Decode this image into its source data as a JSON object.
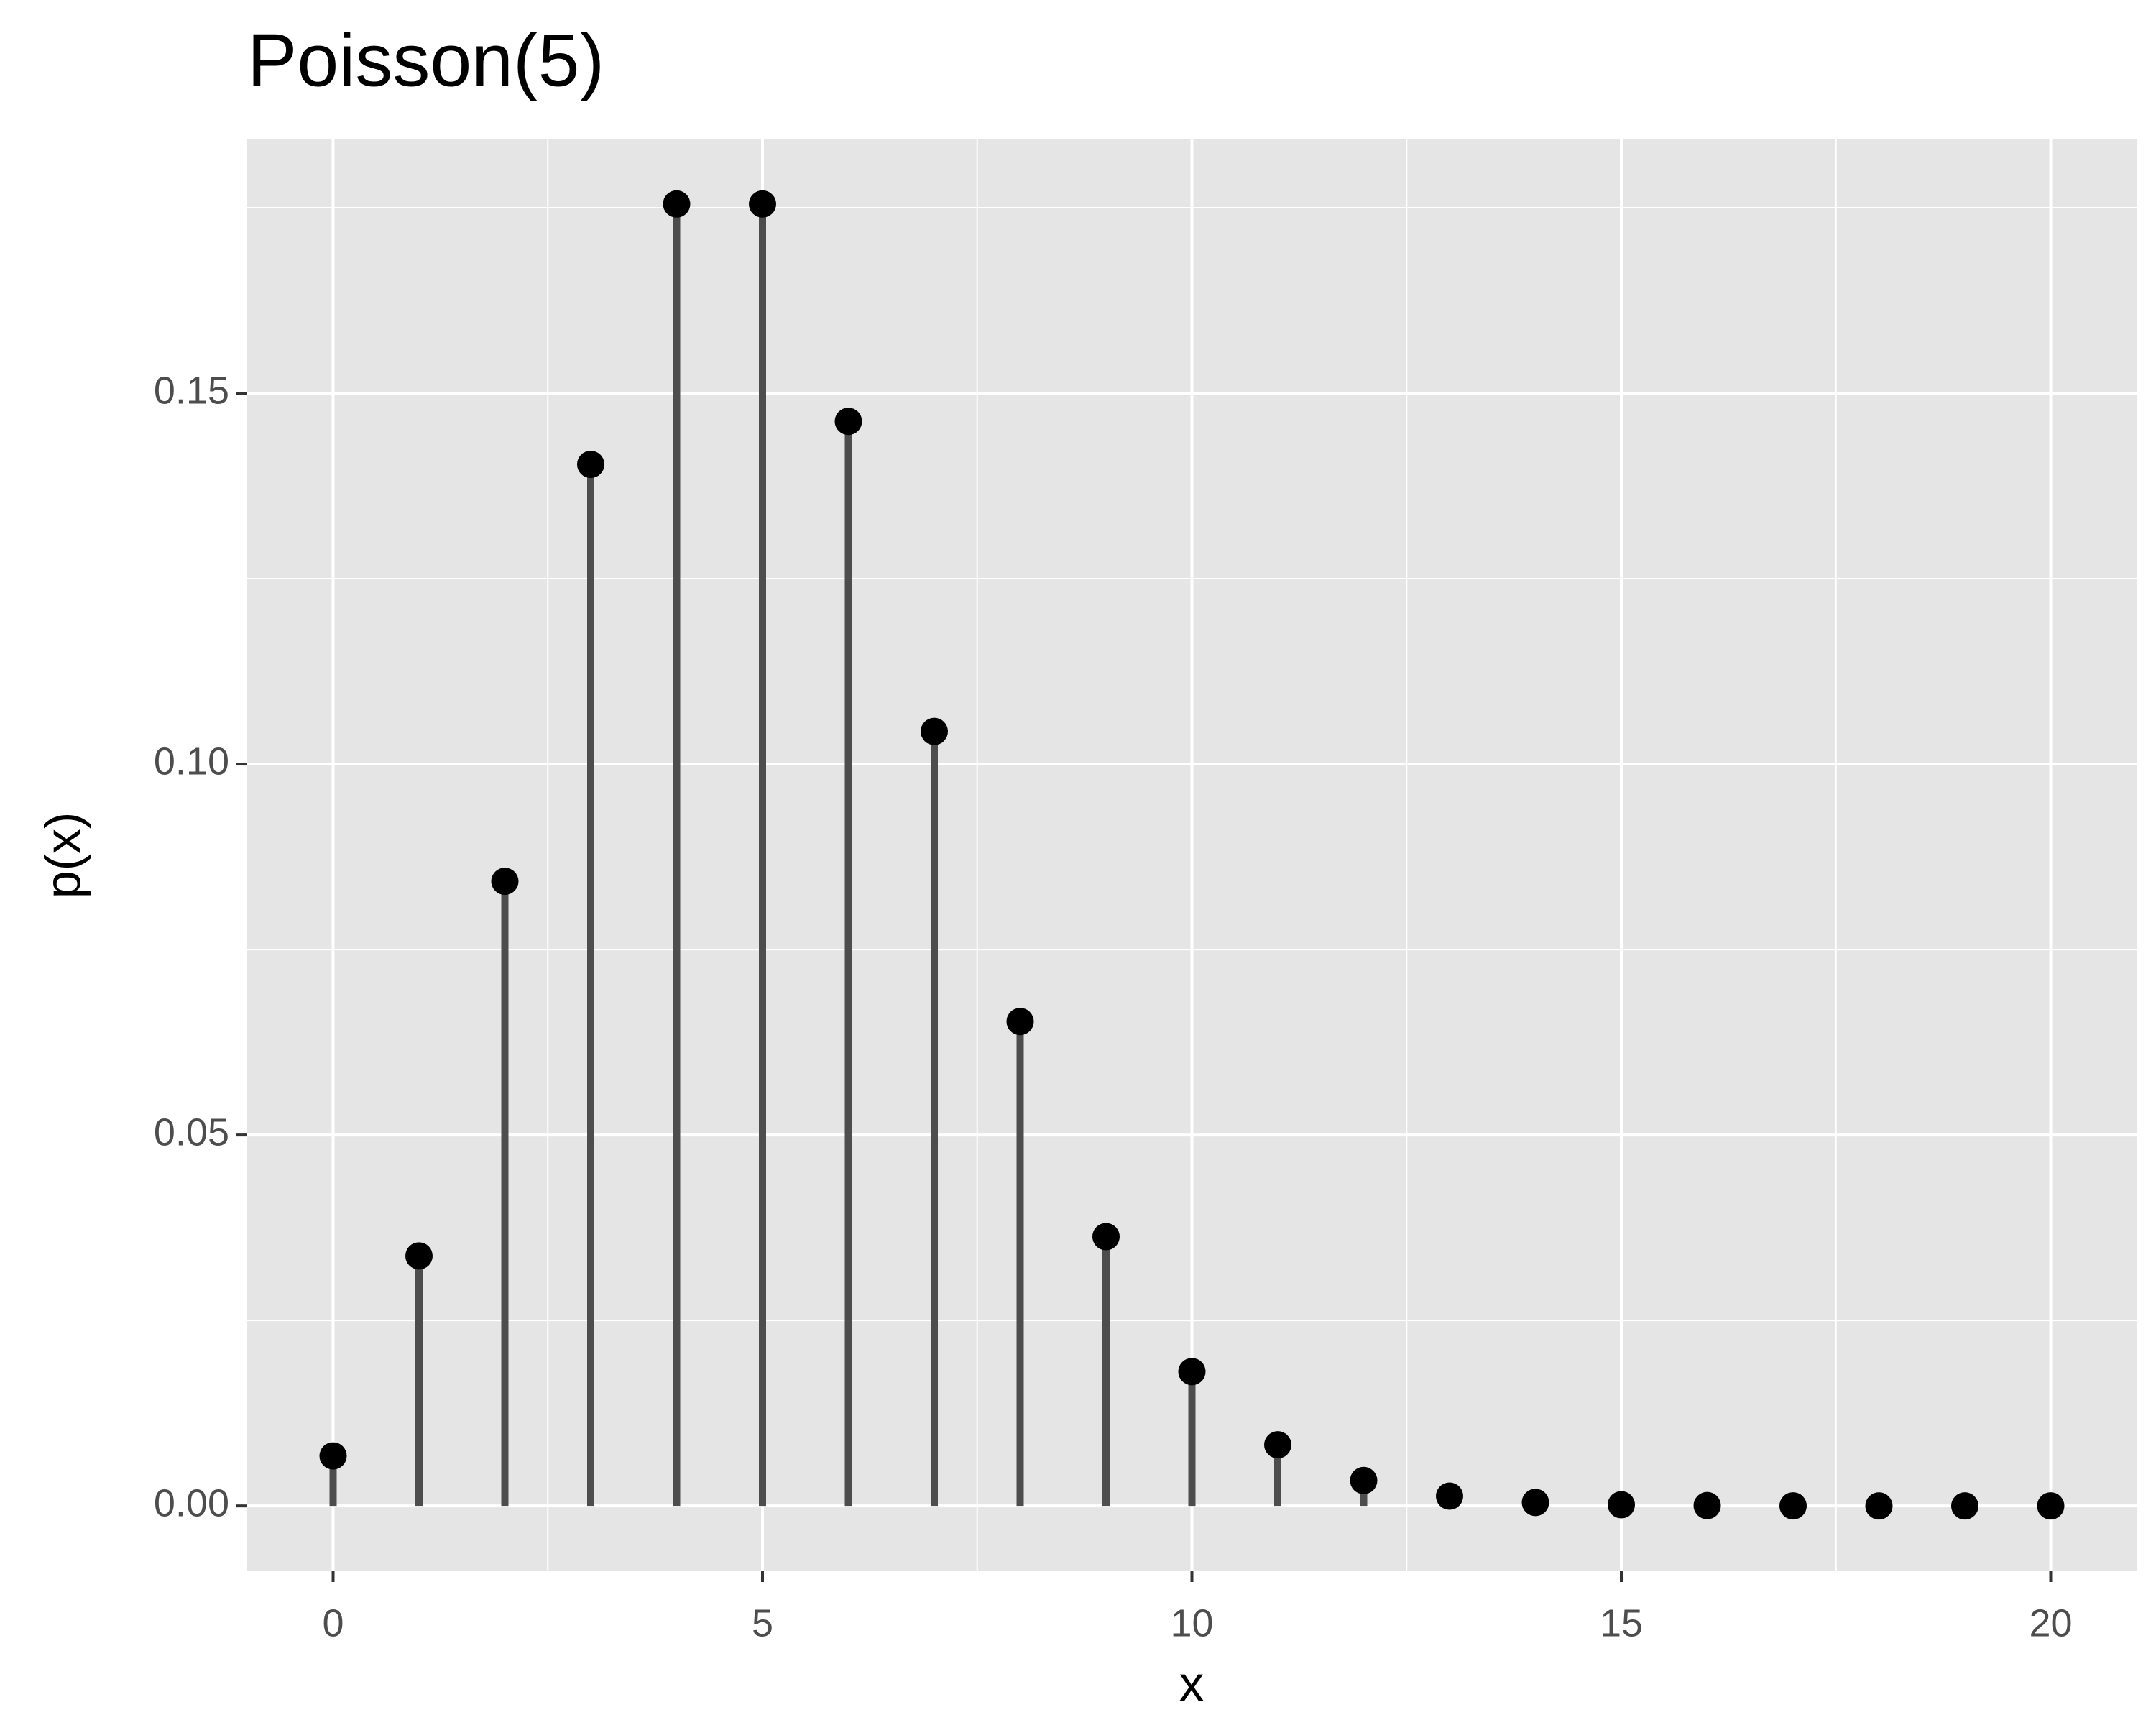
{
  "chart_data": {
    "type": "lollipop",
    "title": "Poisson(5)",
    "x_label": "x",
    "y_label": "p(x)",
    "x": [
      0,
      1,
      2,
      3,
      4,
      5,
      6,
      7,
      8,
      9,
      10,
      11,
      12,
      13,
      14,
      15,
      16,
      17,
      18,
      19,
      20
    ],
    "values": [
      0.00674,
      0.0337,
      0.0842,
      0.1404,
      0.1755,
      0.1755,
      0.1462,
      0.1044,
      0.0653,
      0.0363,
      0.0181,
      0.00824,
      0.00343,
      0.00132,
      0.00047,
      0.00016,
      5e-05,
      1e-05,
      0,
      0,
      0
    ],
    "stem_color": "#4d4d4d",
    "point_color": "#000000",
    "xlim": [
      -1,
      21
    ],
    "xticks": [
      0,
      5,
      10,
      15,
      20
    ],
    "ylim": [
      -0.0088,
      0.1842
    ],
    "yticks": [
      {
        "value": 0,
        "label": "0.00"
      },
      {
        "value": 0.05,
        "label": "0.05"
      },
      {
        "value": 0.1,
        "label": "0.10"
      },
      {
        "value": 0.15,
        "label": "0.15"
      }
    ],
    "x_minor_grid": [
      2.5,
      7.5,
      12.5,
      17.5
    ],
    "y_minor_grid": [
      0.025,
      0.075,
      0.125,
      0.175
    ],
    "grid": true,
    "panel_color": "#e5e5e5"
  }
}
